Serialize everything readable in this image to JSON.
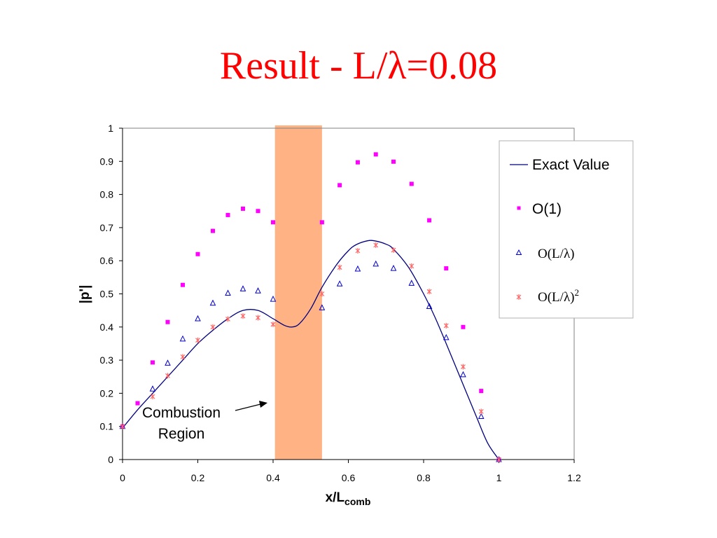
{
  "slide": {
    "title_prefix": "Result - L/",
    "title_lambda": "λ",
    "title_suffix": "=0.08"
  },
  "chart_data": {
    "type": "scatter",
    "xlabel_main": "x/L",
    "xlabel_sub": "comb",
    "ylabel": "|p'|",
    "xlim": [
      0,
      1.2
    ],
    "ylim": [
      0,
      1
    ],
    "xticks": [
      "0",
      "0.2",
      "0.4",
      "0.6",
      "0.8",
      "1",
      "1.2"
    ],
    "yticks": [
      "0",
      "0.1",
      "0.2",
      "0.3",
      "0.4",
      "0.5",
      "0.6",
      "0.7",
      "0.8",
      "0.9",
      "1"
    ],
    "grid": false,
    "legend_position": "top-right",
    "combustion_region": {
      "x_start": 0.405,
      "x_end": 0.53,
      "color": "#ffb385"
    },
    "annotation": {
      "line1": "Combustion",
      "line2": "Region"
    },
    "series": [
      {
        "name": "Exact Value",
        "kind": "line",
        "color": "#000080",
        "x": [
          0,
          0.04,
          0.08,
          0.12,
          0.16,
          0.2,
          0.24,
          0.28,
          0.32,
          0.36,
          0.4,
          0.43,
          0.45,
          0.47,
          0.5,
          0.53,
          0.57,
          0.6,
          0.62,
          0.65,
          0.67,
          0.7,
          0.72,
          0.76,
          0.8,
          0.83,
          0.86,
          0.9,
          0.94,
          0.97,
          1.0
        ],
        "y": [
          0.095,
          0.15,
          0.2,
          0.25,
          0.3,
          0.35,
          0.39,
          0.425,
          0.45,
          0.45,
          0.425,
          0.405,
          0.4,
          0.41,
          0.455,
          0.52,
          0.59,
          0.63,
          0.648,
          0.66,
          0.66,
          0.65,
          0.635,
          0.58,
          0.5,
          0.43,
          0.35,
          0.24,
          0.13,
          0.05,
          0.0
        ]
      },
      {
        "name": "O(1)",
        "kind": "square",
        "color": "#ff00ff",
        "x": [
          0,
          0.04,
          0.08,
          0.12,
          0.16,
          0.2,
          0.24,
          0.28,
          0.32,
          0.36,
          0.4,
          0.53,
          0.577,
          0.625,
          0.673,
          0.72,
          0.768,
          0.815,
          0.86,
          0.905,
          0.953,
          1.0
        ],
        "y": [
          0.1,
          0.17,
          0.293,
          0.415,
          0.527,
          0.62,
          0.69,
          0.738,
          0.757,
          0.75,
          0.716,
          0.716,
          0.828,
          0.897,
          0.921,
          0.899,
          0.832,
          0.722,
          0.577,
          0.4,
          0.207,
          0.0
        ]
      },
      {
        "name": "O(L/",
        "kind": "triangle",
        "color": "#0000cc",
        "x": [
          0,
          0.08,
          0.12,
          0.16,
          0.2,
          0.24,
          0.28,
          0.32,
          0.36,
          0.4,
          0.53,
          0.577,
          0.625,
          0.673,
          0.72,
          0.768,
          0.815,
          0.86,
          0.905,
          0.953,
          1.0
        ],
        "y": [
          0.1,
          0.213,
          0.291,
          0.364,
          0.425,
          0.472,
          0.502,
          0.515,
          0.509,
          0.484,
          0.458,
          0.53,
          0.575,
          0.59,
          0.577,
          0.532,
          0.462,
          0.368,
          0.256,
          0.13,
          0.0
        ]
      },
      {
        "name": "O(L/",
        "kind": "x",
        "color": "#ff6666",
        "x": [
          0,
          0.08,
          0.12,
          0.16,
          0.2,
          0.24,
          0.28,
          0.32,
          0.36,
          0.4,
          0.53,
          0.577,
          0.625,
          0.673,
          0.72,
          0.768,
          0.815,
          0.86,
          0.905,
          0.953,
          1.0
        ],
        "y": [
          0.1,
          0.19,
          0.253,
          0.31,
          0.36,
          0.4,
          0.424,
          0.433,
          0.428,
          0.408,
          0.5,
          0.58,
          0.63,
          0.647,
          0.632,
          0.584,
          0.507,
          0.404,
          0.28,
          0.145,
          0.0
        ]
      }
    ],
    "legend": [
      {
        "text": "Exact Value"
      },
      {
        "text": "O(1)"
      },
      {
        "text_prefix": "O(L/",
        "lambda": "λ",
        "text_suffix": ")"
      },
      {
        "text_prefix": "O(L/",
        "lambda": "λ",
        "text_suffix": ")",
        "superscript": "2"
      }
    ]
  }
}
